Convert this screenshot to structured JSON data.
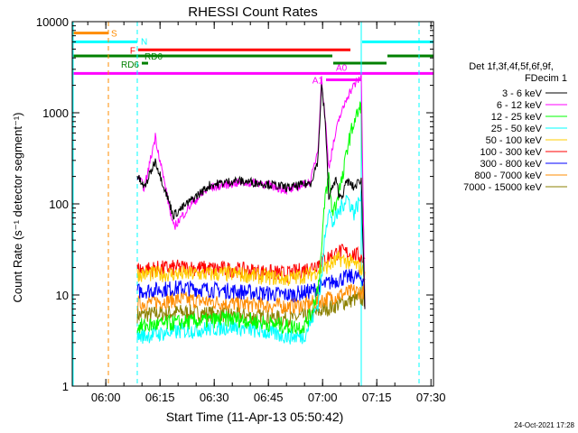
{
  "chart_data": {
    "type": "line",
    "title": "RHESSI Count Rates",
    "xlabel": "Start Time (11-Apr-13 05:50:42)",
    "ylabel": "Count Rate (s⁻¹ detector segment⁻¹)",
    "yscale": "log",
    "ylim": [
      1,
      10000
    ],
    "xlim_minutes_from_start": [
      0,
      100
    ],
    "x_tick_labels": [
      "06:00",
      "06:15",
      "06:30",
      "06:45",
      "07:00",
      "07:15",
      "07:30"
    ],
    "y_tick_labels": [
      "1",
      "10",
      "100",
      "1000",
      "10000"
    ],
    "legend_header": [
      "Det 1f,3f,4f,5f,6f,9f,",
      "FDecim 1"
    ],
    "legend_position": "right",
    "series": [
      {
        "name": "3 - 6 keV",
        "color": "#000000",
        "x": [
          18,
          20,
          23,
          28,
          33,
          38,
          45,
          52,
          60,
          66,
          68,
          69,
          70,
          71,
          72,
          73,
          74,
          75,
          76,
          78,
          80,
          81
        ],
        "y": [
          200,
          150,
          300,
          75,
          110,
          160,
          180,
          170,
          150,
          170,
          300,
          2000,
          850,
          120,
          150,
          180,
          120,
          130,
          180,
          150,
          190,
          7
        ]
      },
      {
        "name": "6 - 12 keV",
        "color": "#ff00ff",
        "x": [
          18,
          20,
          23,
          28,
          33,
          38,
          45,
          52,
          60,
          66,
          68,
          69,
          70,
          71,
          72,
          73,
          74,
          75,
          76,
          78,
          80,
          81
        ],
        "y": [
          200,
          150,
          550,
          55,
          100,
          150,
          170,
          170,
          140,
          175,
          400,
          2300,
          900,
          250,
          400,
          600,
          900,
          1100,
          1500,
          2000,
          2500,
          7
        ]
      },
      {
        "name": "12 - 25 keV",
        "color": "#00ff00",
        "x": [
          18,
          30,
          45,
          60,
          64,
          66,
          68,
          69,
          70,
          71,
          72,
          73,
          74,
          75,
          76,
          78,
          80,
          81
        ],
        "y": [
          4.5,
          5,
          5.5,
          4.5,
          4.5,
          6,
          12,
          30,
          120,
          200,
          80,
          100,
          150,
          200,
          400,
          800,
          1200,
          8
        ]
      },
      {
        "name": "25 - 50 keV",
        "color": "#00ffff",
        "x": [
          18,
          30,
          45,
          60,
          64,
          66,
          68,
          69,
          70,
          71,
          72,
          73,
          74,
          75,
          76,
          78,
          80,
          81
        ],
        "y": [
          3.5,
          4,
          4.5,
          3.5,
          3.5,
          5,
          8,
          15,
          50,
          90,
          60,
          70,
          85,
          100,
          120,
          80,
          120,
          8
        ]
      },
      {
        "name": "50 - 100 keV",
        "color": "#ffcc00",
        "x": [
          18,
          30,
          45,
          60,
          66,
          70,
          74,
          78,
          81
        ],
        "y": [
          17,
          17,
          17,
          15,
          17,
          20,
          25,
          22,
          18
        ]
      },
      {
        "name": "100 - 300 keV",
        "color": "#ff0000",
        "x": [
          18,
          30,
          45,
          60,
          66,
          70,
          74,
          78,
          81
        ],
        "y": [
          19,
          20,
          19,
          17,
          20,
          25,
          30,
          28,
          25
        ]
      },
      {
        "name": "300 - 800 keV",
        "color": "#0000ff",
        "x": [
          18,
          30,
          45,
          60,
          66,
          70,
          74,
          78,
          81
        ],
        "y": [
          11,
          12,
          11,
          10,
          11,
          13,
          15,
          16,
          15
        ]
      },
      {
        "name": "800 - 7000 keV",
        "color": "#ff8c00",
        "x": [
          18,
          30,
          45,
          60,
          66,
          70,
          74,
          78,
          81
        ],
        "y": [
          8,
          9,
          8,
          7.5,
          8,
          9,
          10,
          11,
          11
        ]
      },
      {
        "name": "7000 - 15000 keV",
        "color": "#8b8000",
        "x": [
          18,
          30,
          45,
          60,
          66,
          70,
          74,
          78,
          81
        ],
        "y": [
          6,
          6.5,
          6,
          5.5,
          6,
          7,
          8,
          9,
          9
        ]
      }
    ],
    "flag_bars": [
      {
        "label": "S",
        "color": "#ff8c00",
        "x": [
          0,
          10
        ],
        "level": 7500
      },
      {
        "label": "N",
        "color": "#00ffff",
        "x": [
          0,
          18
        ],
        "level": 6000
      },
      {
        "label": "N",
        "color": "#00ffff",
        "x": [
          80,
          100
        ],
        "level": 6000
      },
      {
        "label": "F",
        "color": "#ff0000",
        "x": [
          18,
          77
        ],
        "level": 4900
      },
      {
        "label": "RD0",
        "color": "#008000",
        "x": [
          0,
          72
        ],
        "level": 4200
      },
      {
        "label": "RD0",
        "color": "#008000",
        "x": [
          72,
          87
        ],
        "level": 3500
      },
      {
        "label": "RD0",
        "color": "#008000",
        "x": [
          87,
          100
        ],
        "level": 4200
      },
      {
        "label": "RD6",
        "color": "#008000",
        "x": [
          19,
          21
        ],
        "level": 3500
      },
      {
        "label": "A0",
        "color": "#ff00ff",
        "x": [
          0,
          100
        ],
        "level": 2700
      },
      {
        "label": "A1",
        "color": "#ff00ff",
        "x": [
          70,
          80
        ],
        "level": 2300
      }
    ],
    "vertical_markers": [
      {
        "x": 0,
        "color": "#00ffff",
        "style": "solid"
      },
      {
        "x": 10,
        "color": "#ff8c00",
        "style": "dashed"
      },
      {
        "x": 18,
        "color": "#00ffff",
        "style": "dashed"
      },
      {
        "x": 80,
        "color": "#00ffff",
        "style": "solid"
      },
      {
        "x": 96,
        "color": "#00ffff",
        "style": "dashed"
      }
    ]
  },
  "footer": {
    "timestamp": "24-Oct-2021 17:28"
  }
}
